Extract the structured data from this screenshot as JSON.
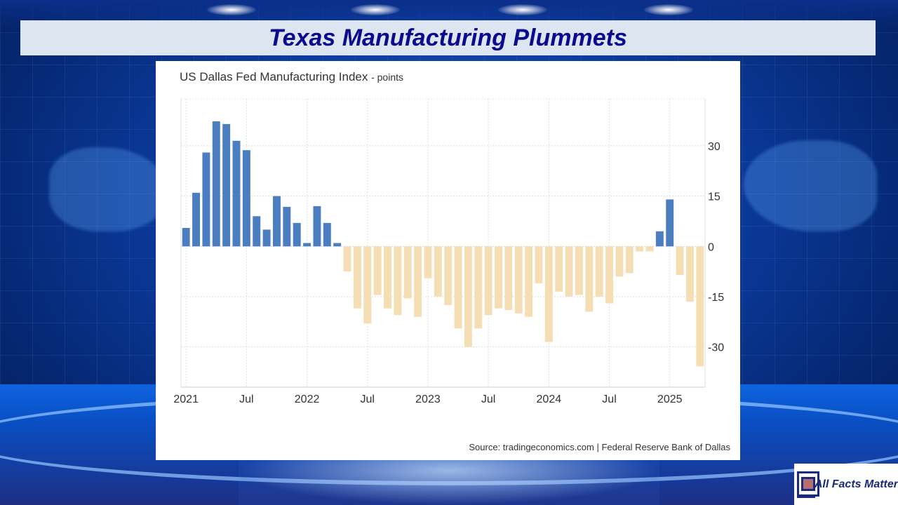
{
  "header": {
    "title": "Texas Manufacturing Plummets"
  },
  "chart_data": {
    "type": "bar",
    "title": "US Dallas Fed Manufacturing Index",
    "unit_suffix": "- points",
    "source": "Source: tradingeconomics.com | Federal Reserve Bank of Dallas",
    "ylim": [
      -42,
      44
    ],
    "y_ticks": [
      30,
      15,
      0,
      -15,
      -30
    ],
    "y_tick_labels": [
      "30",
      "15",
      "0",
      "-15",
      "-30"
    ],
    "x_ticks": [
      {
        "index": 0,
        "label": "2021"
      },
      {
        "index": 6,
        "label": "Jul"
      },
      {
        "index": 12,
        "label": "2022"
      },
      {
        "index": 18,
        "label": "Jul"
      },
      {
        "index": 24,
        "label": "2023"
      },
      {
        "index": 30,
        "label": "Jul"
      },
      {
        "index": 36,
        "label": "2024"
      },
      {
        "index": 42,
        "label": "Jul"
      },
      {
        "index": 48,
        "label": "2025"
      }
    ],
    "categories": [
      "2021-01",
      "2021-02",
      "2021-03",
      "2021-04",
      "2021-05",
      "2021-06",
      "2021-07",
      "2021-08",
      "2021-09",
      "2021-10",
      "2021-11",
      "2021-12",
      "2022-01",
      "2022-02",
      "2022-03",
      "2022-04",
      "2022-05",
      "2022-06",
      "2022-07",
      "2022-08",
      "2022-09",
      "2022-10",
      "2022-11",
      "2022-12",
      "2023-01",
      "2023-02",
      "2023-03",
      "2023-04",
      "2023-05",
      "2023-06",
      "2023-07",
      "2023-08",
      "2023-09",
      "2023-10",
      "2023-11",
      "2023-12",
      "2024-01",
      "2024-02",
      "2024-03",
      "2024-04",
      "2024-05",
      "2024-06",
      "2024-07",
      "2024-08",
      "2024-09",
      "2024-10",
      "2024-11",
      "2024-12",
      "2025-01",
      "2025-02",
      "2025-03",
      "2025-04"
    ],
    "values": [
      5.5,
      16.0,
      28.0,
      37.3,
      36.5,
      31.5,
      28.7,
      9.0,
      5.0,
      15.0,
      11.8,
      7.0,
      1.0,
      12.0,
      7.0,
      1.0,
      -7.5,
      -18.5,
      -23.0,
      -14.5,
      -18.5,
      -20.5,
      -15.5,
      -21.0,
      -9.5,
      -15.0,
      -17.5,
      -24.5,
      -30.0,
      -24.5,
      -20.5,
      -18.5,
      -19.0,
      -20.0,
      -21.0,
      -11.0,
      -28.5,
      -13.5,
      -15.0,
      -14.5,
      -19.5,
      -15.0,
      -17.0,
      -9.0,
      -8.0,
      -1.5,
      -1.5,
      4.5,
      14.0,
      -8.5,
      -16.5,
      -35.8
    ],
    "positive_color": "#4a7ec0",
    "negative_color": "#f5deb3",
    "grid": true
  },
  "branding": {
    "logo_text": "All Facts Matter"
  }
}
